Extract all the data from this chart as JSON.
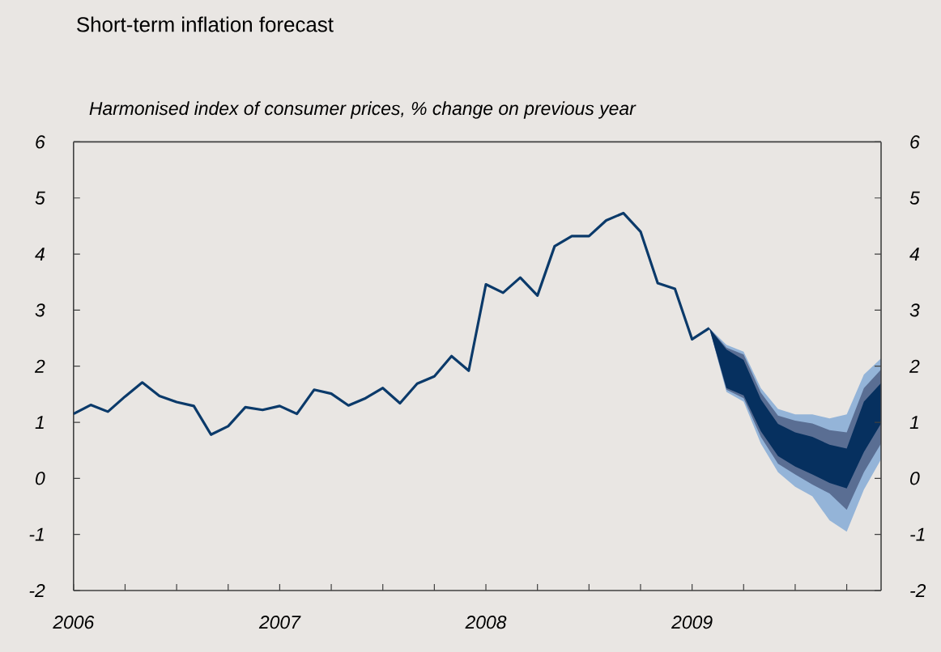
{
  "chart_data": {
    "type": "line",
    "title": "Short-term inflation forecast",
    "subtitle": "Harmonised index of consumer prices, % change on previous year",
    "x": [
      "2006-01",
      "2006-02",
      "2006-03",
      "2006-04",
      "2006-05",
      "2006-06",
      "2006-07",
      "2006-08",
      "2006-09",
      "2006-10",
      "2006-11",
      "2006-12",
      "2007-01",
      "2007-02",
      "2007-03",
      "2007-04",
      "2007-05",
      "2007-06",
      "2007-07",
      "2007-08",
      "2007-09",
      "2007-10",
      "2007-11",
      "2007-12",
      "2008-01",
      "2008-02",
      "2008-03",
      "2008-04",
      "2008-05",
      "2008-06",
      "2008-07",
      "2008-08",
      "2008-09",
      "2008-10",
      "2008-11",
      "2008-12",
      "2009-01",
      "2009-02"
    ],
    "series": [
      {
        "color": "#0b3a6a",
        "values": [
          1.15,
          1.31,
          1.19,
          1.46,
          1.71,
          1.47,
          1.36,
          1.29,
          0.78,
          0.93,
          1.27,
          1.22,
          1.29,
          1.15,
          1.58,
          1.51,
          1.3,
          1.43,
          1.61,
          1.34,
          1.69,
          1.82,
          2.18,
          1.92,
          3.46,
          3.31,
          3.58,
          3.26,
          4.14,
          4.32,
          4.32,
          4.6,
          4.73,
          4.4,
          3.48,
          3.38,
          2.48,
          2.68
        ]
      },
      {
        "type": "area",
        "color": "#94b4d8",
        "x": [
          "2009-02",
          "2009-03",
          "2009-04",
          "2009-05",
          "2009-06",
          "2009-07",
          "2009-08",
          "2009-09",
          "2009-10",
          "2009-11",
          "2009-12"
        ],
        "values": [
          null,
          null,
          null,
          null,
          null,
          null,
          null,
          null,
          null,
          null,
          null
        ],
        "lower": [
          2.68,
          1.54,
          1.37,
          0.62,
          0.11,
          -0.15,
          -0.32,
          -0.75,
          -0.95,
          -0.2,
          0.34
        ],
        "upper": [
          2.68,
          2.38,
          2.26,
          1.61,
          1.24,
          1.14,
          1.14,
          1.07,
          1.14,
          1.85,
          2.14
        ]
      },
      {
        "type": "area",
        "color": "#5a6e93",
        "x": [
          "2009-02",
          "2009-03",
          "2009-04",
          "2009-05",
          "2009-06",
          "2009-07",
          "2009-08",
          "2009-09",
          "2009-10",
          "2009-11",
          "2009-12"
        ],
        "values": [
          null,
          null,
          null,
          null,
          null,
          null,
          null,
          null,
          null,
          null,
          null
        ],
        "lower": [
          2.68,
          1.58,
          1.43,
          0.74,
          0.26,
          0.07,
          -0.11,
          -0.27,
          -0.56,
          0.11,
          0.62
        ],
        "upper": [
          2.68,
          2.33,
          2.21,
          1.53,
          1.12,
          1.03,
          0.98,
          0.86,
          0.82,
          1.61,
          1.94
        ]
      },
      {
        "type": "area",
        "color": "#06305f",
        "x": [
          "2009-02",
          "2009-03",
          "2009-04",
          "2009-05",
          "2009-06",
          "2009-07",
          "2009-08",
          "2009-09",
          "2009-10",
          "2009-11",
          "2009-12"
        ],
        "values": [
          null,
          null,
          null,
          null,
          null,
          null,
          null,
          null,
          null,
          null,
          null
        ],
        "lower": [
          2.68,
          1.61,
          1.48,
          0.84,
          0.4,
          0.21,
          0.07,
          -0.08,
          -0.18,
          0.47,
          0.98
        ],
        "upper": [
          2.68,
          2.3,
          2.11,
          1.41,
          0.97,
          0.82,
          0.74,
          0.6,
          0.53,
          1.37,
          1.7
        ]
      }
    ],
    "xlim": [
      "2006-01",
      "2009-12"
    ],
    "xticks": [
      {
        "value": "2006-01",
        "label": "2006"
      },
      {
        "value": "2006-04",
        "label": null
      },
      {
        "value": "2006-07",
        "label": null
      },
      {
        "value": "2006-10",
        "label": null
      },
      {
        "value": "2007-01",
        "label": "2007"
      },
      {
        "value": "2007-04",
        "label": null
      },
      {
        "value": "2007-07",
        "label": null
      },
      {
        "value": "2007-10",
        "label": null
      },
      {
        "value": "2008-01",
        "label": "2008"
      },
      {
        "value": "2008-04",
        "label": null
      },
      {
        "value": "2008-07",
        "label": null
      },
      {
        "value": "2008-10",
        "label": null
      },
      {
        "value": "2009-01",
        "label": "2009"
      },
      {
        "value": "2009-04",
        "label": null
      },
      {
        "value": "2009-07",
        "label": null
      },
      {
        "value": "2009-10",
        "label": null
      }
    ],
    "ylim": [
      -2,
      6
    ],
    "yticks": [
      -2,
      -1,
      0,
      1,
      2,
      3,
      4,
      5,
      6
    ],
    "y2lim": [
      -2,
      6
    ],
    "y2ticks": [
      -2,
      -1,
      0,
      1,
      2,
      3,
      4,
      5,
      6
    ],
    "grid": false,
    "marker": "none",
    "line_style": "solid"
  }
}
